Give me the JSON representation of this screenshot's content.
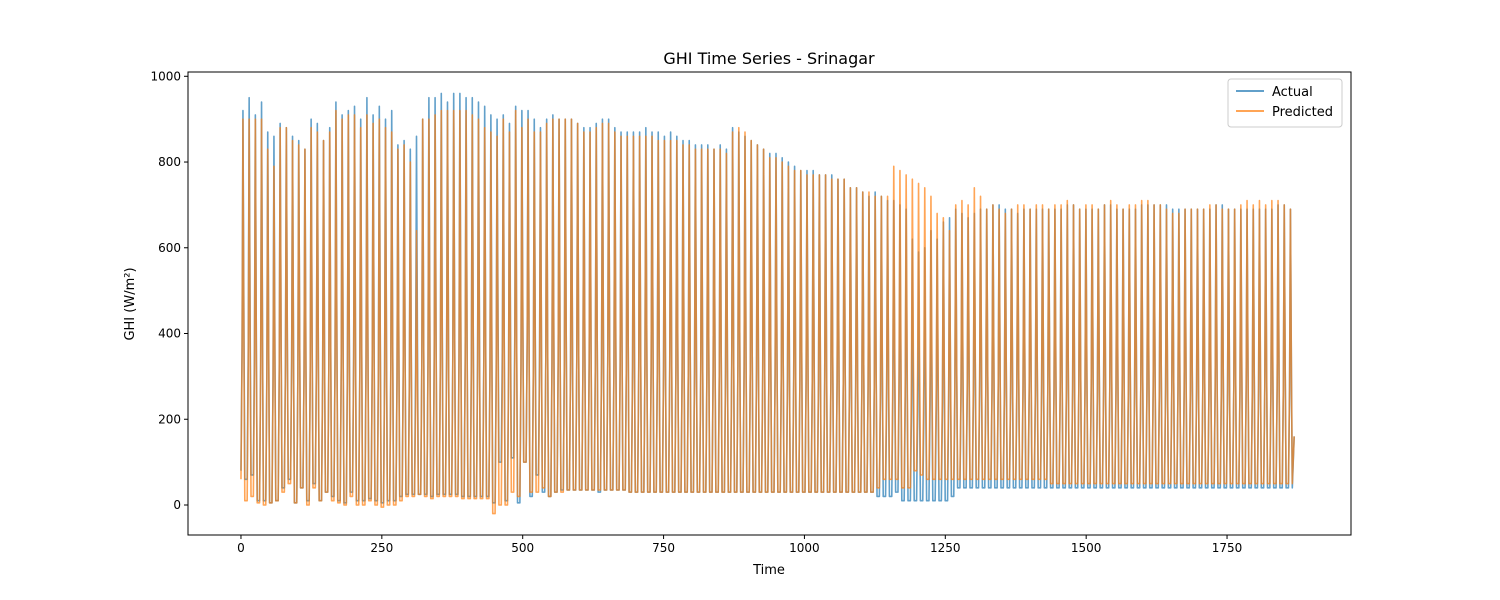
{
  "chart_data": {
    "type": "line",
    "title": "GHI Time Series - Srinagar",
    "xlabel": "Time",
    "ylabel": "GHI (W/m²)",
    "xlim": [
      -94,
      1970
    ],
    "ylim": [
      -70,
      1010
    ],
    "x_ticks": [
      0,
      250,
      500,
      750,
      1000,
      1250,
      1500,
      1750
    ],
    "y_ticks": [
      0,
      200,
      400,
      600,
      800,
      1000
    ],
    "grid": false,
    "legend_position": "top-right",
    "x_start": 0,
    "x_end": 1875,
    "cycle_length_steps": 11,
    "series": [
      {
        "name": "Actual",
        "color": "#1f77b4",
        "opacity": 0.7,
        "day_peaks": [
          920,
          950,
          910,
          940,
          870,
          860,
          890,
          880,
          860,
          850,
          830,
          900,
          890,
          850,
          880,
          940,
          910,
          920,
          930,
          900,
          950,
          910,
          930,
          900,
          920,
          840,
          850,
          830,
          860,
          900,
          950,
          950,
          960,
          940,
          960,
          960,
          950,
          950,
          940,
          930,
          910,
          900,
          910,
          890,
          930,
          920,
          920,
          900,
          880,
          900,
          910,
          900,
          900,
          900,
          890,
          880,
          880,
          890,
          900,
          900,
          880,
          870,
          870,
          870,
          870,
          880,
          870,
          870,
          860,
          870,
          860,
          850,
          850,
          840,
          840,
          840,
          830,
          840,
          830,
          880,
          870,
          860,
          850,
          840,
          830,
          820,
          820,
          810,
          800,
          790,
          780,
          780,
          780,
          770,
          770,
          770,
          760,
          760,
          740,
          740,
          730,
          720,
          730,
          720,
          710,
          710,
          700,
          690,
          620,
          590,
          600,
          640,
          620,
          660,
          670,
          690,
          680,
          670,
          680,
          690,
          690,
          700,
          700,
          690,
          690,
          680,
          690,
          690,
          690,
          690,
          690,
          690,
          690,
          700,
          700,
          690,
          690,
          690,
          690,
          700,
          700,
          690,
          690,
          690,
          690,
          700,
          700,
          700,
          700,
          700,
          690,
          690,
          690,
          690,
          690,
          690,
          690,
          700,
          700,
          690,
          690,
          690,
          690,
          690,
          690,
          690,
          690,
          700,
          700,
          690
        ],
        "night_lows": [
          80,
          60,
          70,
          10,
          10,
          5,
          10,
          40,
          60,
          5,
          40,
          10,
          50,
          10,
          30,
          20,
          10,
          5,
          30,
          10,
          10,
          15,
          10,
          5,
          10,
          10,
          20,
          25,
          25,
          25,
          25,
          20,
          25,
          25,
          25,
          25,
          20,
          20,
          20,
          20,
          20,
          5,
          100,
          10,
          110,
          5,
          100,
          20,
          70,
          30,
          20,
          30,
          35,
          35,
          35,
          35,
          35,
          35,
          30,
          35,
          35,
          35,
          35,
          30,
          30,
          30,
          30,
          30,
          30,
          30,
          30,
          30,
          30,
          30,
          30,
          30,
          30,
          30,
          30,
          30,
          30,
          30,
          30,
          30,
          30,
          30,
          30,
          30,
          30,
          30,
          30,
          30,
          30,
          30,
          30,
          30,
          30,
          30,
          30,
          30,
          30,
          30,
          30,
          20,
          20,
          20,
          30,
          10,
          10,
          10,
          10,
          10,
          10,
          10,
          10,
          20,
          40,
          40,
          40,
          40,
          40,
          40,
          40,
          40,
          40,
          40,
          40,
          40,
          40,
          40,
          40,
          40,
          40,
          40,
          40,
          40,
          40,
          40,
          40,
          40,
          40,
          40,
          40,
          40,
          40,
          40,
          40,
          40,
          40,
          40,
          40,
          40,
          40,
          40,
          40,
          40,
          40,
          40,
          40,
          40,
          40,
          40,
          40,
          40,
          40,
          40,
          40,
          40,
          40,
          40,
          40,
          40
        ]
      },
      {
        "name": "Predicted",
        "color": "#ff7f0e",
        "opacity": 0.7,
        "day_peaks": [
          900,
          900,
          900,
          900,
          830,
          790,
          880,
          880,
          850,
          840,
          830,
          880,
          870,
          850,
          870,
          920,
          900,
          910,
          910,
          880,
          910,
          890,
          900,
          880,
          870,
          830,
          840,
          800,
          640,
          900,
          900,
          910,
          920,
          920,
          920,
          920,
          920,
          910,
          900,
          880,
          870,
          860,
          900,
          870,
          920,
          880,
          900,
          870,
          870,
          890,
          900,
          900,
          900,
          900,
          890,
          870,
          870,
          880,
          890,
          890,
          870,
          860,
          860,
          860,
          860,
          860,
          860,
          850,
          850,
          850,
          850,
          840,
          840,
          830,
          830,
          830,
          830,
          830,
          820,
          870,
          880,
          870,
          850,
          840,
          830,
          810,
          810,
          800,
          790,
          780,
          780,
          770,
          770,
          770,
          770,
          760,
          760,
          760,
          740,
          740,
          730,
          730,
          720,
          720,
          720,
          790,
          780,
          770,
          760,
          750,
          740,
          720,
          680,
          670,
          640,
          700,
          710,
          700,
          740,
          720,
          690,
          700,
          690,
          680,
          690,
          700,
          700,
          690,
          700,
          700,
          690,
          700,
          700,
          710,
          700,
          690,
          700,
          700,
          690,
          700,
          710,
          700,
          690,
          700,
          700,
          710,
          710,
          700,
          700,
          690,
          680,
          680,
          690,
          690,
          690,
          690,
          700,
          700,
          690,
          690,
          690,
          700,
          710,
          700,
          710,
          700,
          710,
          710,
          700,
          690
        ],
        "night_lows": [
          60,
          10,
          20,
          5,
          0,
          5,
          10,
          30,
          50,
          5,
          40,
          0,
          40,
          10,
          30,
          10,
          5,
          0,
          20,
          0,
          0,
          10,
          0,
          -5,
          0,
          0,
          10,
          20,
          20,
          25,
          20,
          15,
          20,
          20,
          20,
          20,
          15,
          15,
          15,
          15,
          15,
          -20,
          0,
          0,
          30,
          20,
          100,
          30,
          30,
          40,
          20,
          30,
          30,
          35,
          35,
          35,
          35,
          35,
          35,
          35,
          35,
          35,
          35,
          30,
          30,
          30,
          30,
          30,
          30,
          30,
          30,
          30,
          30,
          30,
          30,
          30,
          30,
          30,
          30,
          30,
          30,
          30,
          30,
          30,
          30,
          30,
          30,
          30,
          30,
          30,
          30,
          30,
          30,
          30,
          30,
          30,
          30,
          30,
          30,
          30,
          30,
          30,
          30,
          40,
          60,
          60,
          60,
          40,
          40,
          80,
          70,
          60,
          60,
          60,
          60,
          60,
          60,
          60,
          60,
          60,
          60,
          60,
          60,
          60,
          60,
          60,
          60,
          60,
          60,
          60,
          60,
          50,
          50,
          50,
          50,
          50,
          50,
          50,
          50,
          50,
          50,
          50,
          50,
          50,
          50,
          50,
          50,
          50,
          50,
          50,
          50,
          50,
          50,
          50,
          50,
          50,
          50,
          50,
          50,
          50,
          50,
          50,
          50,
          50,
          50,
          50,
          50,
          50,
          50,
          50
        ]
      }
    ]
  }
}
